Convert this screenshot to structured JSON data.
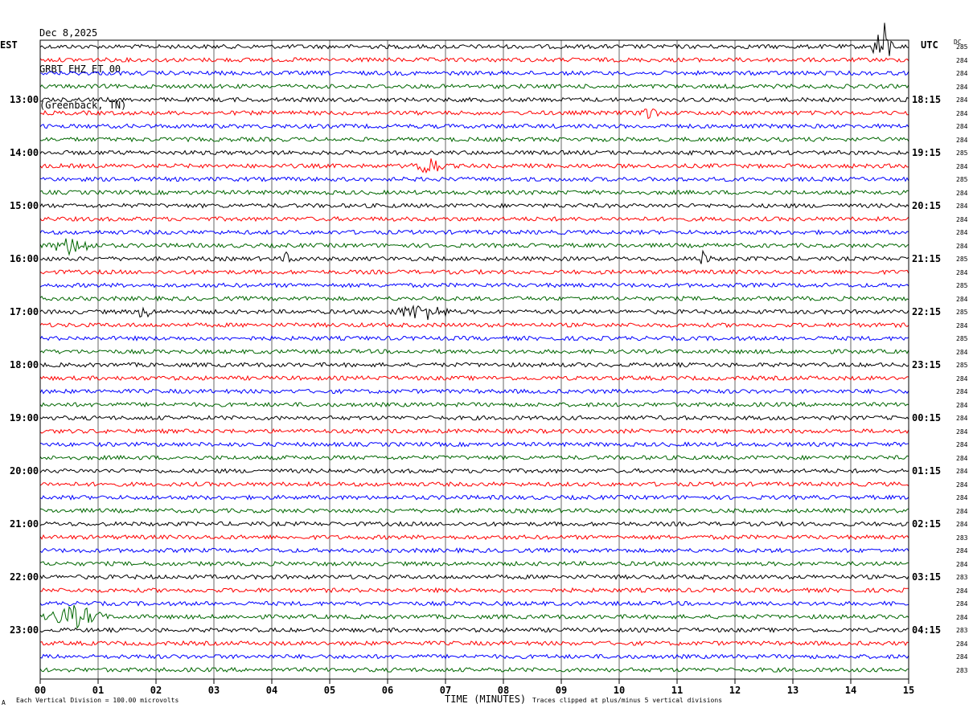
{
  "header": {
    "date": "Dec 8,2025",
    "station": "GRBT EHZ ET 00",
    "location": "(Greenback, TN)"
  },
  "labels": {
    "left_timezone": "EST",
    "right_timezone": "UTC",
    "dc_header": "DC",
    "corner_mark": "A"
  },
  "notes": {
    "scale": "Each Vertical Division =  100.00 microvolts",
    "clip": "Traces clipped at plus/minus 5 vertical divisions"
  },
  "chart_data": {
    "type": "line",
    "title": "",
    "xlabel": "TIME (MINUTES)",
    "xlim": [
      0,
      15
    ],
    "x_ticks": [
      "00",
      "01",
      "02",
      "03",
      "04",
      "05",
      "06",
      "07",
      "08",
      "09",
      "10",
      "11",
      "12",
      "13",
      "14",
      "15"
    ],
    "trace_count": 48,
    "trace_colors": [
      "#000000",
      "#ff0000",
      "#0000ff",
      "#006600"
    ],
    "left_hour_labels": [
      {
        "trace": 4,
        "text": "13:00"
      },
      {
        "trace": 8,
        "text": "14:00"
      },
      {
        "trace": 12,
        "text": "15:00"
      },
      {
        "trace": 16,
        "text": "16:00"
      },
      {
        "trace": 20,
        "text": "17:00"
      },
      {
        "trace": 24,
        "text": "18:00"
      },
      {
        "trace": 28,
        "text": "19:00"
      },
      {
        "trace": 32,
        "text": "20:00"
      },
      {
        "trace": 36,
        "text": "21:00"
      },
      {
        "trace": 40,
        "text": "22:00"
      },
      {
        "trace": 44,
        "text": "23:00"
      }
    ],
    "right_hour_labels": [
      {
        "trace": 4,
        "text": "18:15"
      },
      {
        "trace": 8,
        "text": "19:15"
      },
      {
        "trace": 12,
        "text": "20:15"
      },
      {
        "trace": 16,
        "text": "21:15"
      },
      {
        "trace": 20,
        "text": "22:15"
      },
      {
        "trace": 24,
        "text": "23:15"
      },
      {
        "trace": 28,
        "text": "00:15"
      },
      {
        "trace": 32,
        "text": "01:15"
      },
      {
        "trace": 36,
        "text": "02:15"
      },
      {
        "trace": 40,
        "text": "03:15"
      },
      {
        "trace": 44,
        "text": "04:15"
      }
    ],
    "dc_values": [
      "285",
      "284",
      "284",
      "284",
      "284",
      "284",
      "284",
      "284",
      "285",
      "284",
      "285",
      "284",
      "284",
      "284",
      "284",
      "284",
      "285",
      "284",
      "285",
      "284",
      "285",
      "284",
      "285",
      "284",
      "285",
      "284",
      "284",
      "284",
      "284",
      "284",
      "284",
      "284",
      "284",
      "284",
      "284",
      "284",
      "284",
      "283",
      "284",
      "284",
      "283",
      "284",
      "284",
      "284",
      "283",
      "284",
      "284",
      "283"
    ],
    "events": [
      {
        "trace": 0,
        "start_min": 14.35,
        "end_min": 14.75,
        "amp": 6.0,
        "clipped": true
      },
      {
        "trace": 5,
        "start_min": 10.3,
        "end_min": 10.7,
        "amp": 1.4
      },
      {
        "trace": 9,
        "start_min": 6.4,
        "end_min": 7.0,
        "amp": 2.2
      },
      {
        "trace": 15,
        "start_min": 0.1,
        "end_min": 1.0,
        "amp": 1.8
      },
      {
        "trace": 16,
        "start_min": 4.15,
        "end_min": 4.4,
        "amp": 1.4
      },
      {
        "trace": 16,
        "start_min": 11.3,
        "end_min": 11.6,
        "amp": 1.4
      },
      {
        "trace": 20,
        "start_min": 6.0,
        "end_min": 7.2,
        "amp": 1.6
      },
      {
        "trace": 20,
        "start_min": 1.6,
        "end_min": 2.0,
        "amp": 1.2
      },
      {
        "trace": 43,
        "start_min": 0.0,
        "end_min": 1.2,
        "amp": 2.2
      }
    ]
  }
}
